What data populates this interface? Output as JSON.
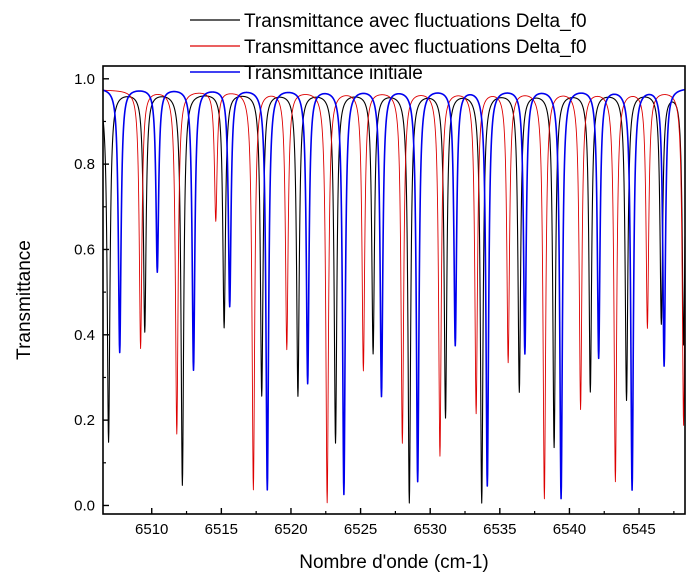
{
  "chart_data": {
    "type": "line",
    "xlabel": "Nombre d'onde (cm-1)",
    "ylabel": "Transmittance",
    "xlim": [
      6506.5,
      6548.3
    ],
    "ylim": [
      -0.02,
      1.03
    ],
    "x_ticks": [
      "6510",
      "6515",
      "6520",
      "6525",
      "6530",
      "6535",
      "6540",
      "6545"
    ],
    "y_ticks": [
      "0.0",
      "0.2",
      "0.4",
      "0.6",
      "0.8",
      "1.0"
    ],
    "legend_position": "top-center",
    "grid": false,
    "series": [
      {
        "name": "Transmittance avec fluctuations Delta_f0",
        "color": "#000000",
        "baseline": 0.97,
        "dips": [
          [
            6506.9,
            0.15
          ],
          [
            6509.5,
            0.41
          ],
          [
            6512.2,
            0.05
          ],
          [
            6515.2,
            0.42
          ],
          [
            6517.9,
            0.26
          ],
          [
            6520.5,
            0.26
          ],
          [
            6523.2,
            0.15
          ],
          [
            6525.9,
            0.36
          ],
          [
            6528.5,
            0.01
          ],
          [
            6531.1,
            0.21
          ],
          [
            6533.7,
            0.01
          ],
          [
            6536.4,
            0.27
          ],
          [
            6538.9,
            0.14
          ],
          [
            6541.5,
            0.27
          ],
          [
            6544.1,
            0.25
          ],
          [
            6546.6,
            0.43
          ],
          [
            6548.2,
            0.38
          ]
        ]
      },
      {
        "name": "Transmittance avec fluctuations Delta_f0",
        "color": "#dd0000",
        "baseline": 0.975,
        "dips": [
          [
            6509.2,
            0.37
          ],
          [
            6511.8,
            0.17
          ],
          [
            6514.6,
            0.67
          ],
          [
            6517.3,
            0.04
          ],
          [
            6519.7,
            0.37
          ],
          [
            6522.6,
            0.01
          ],
          [
            6525.2,
            0.32
          ],
          [
            6528.0,
            0.15
          ],
          [
            6530.7,
            0.12
          ],
          [
            6533.3,
            0.22
          ],
          [
            6535.6,
            0.34
          ],
          [
            6538.2,
            0.02
          ],
          [
            6540.8,
            0.23
          ],
          [
            6543.3,
            0.06
          ],
          [
            6545.6,
            0.42
          ],
          [
            6548.2,
            0.19
          ]
        ]
      },
      {
        "name": "Transmittance initiale",
        "color": "#0000ee",
        "baseline": 0.98,
        "dips": [
          [
            6507.7,
            0.36
          ],
          [
            6510.4,
            0.55
          ],
          [
            6513.0,
            0.32
          ],
          [
            6515.6,
            0.47
          ],
          [
            6518.3,
            0.04
          ],
          [
            6521.2,
            0.29
          ],
          [
            6523.8,
            0.03
          ],
          [
            6526.5,
            0.26
          ],
          [
            6529.1,
            0.06
          ],
          [
            6531.8,
            0.38
          ],
          [
            6534.1,
            0.05
          ],
          [
            6536.8,
            0.36
          ],
          [
            6539.4,
            0.02
          ],
          [
            6542.1,
            0.35
          ],
          [
            6544.5,
            0.04
          ],
          [
            6546.8,
            0.33
          ]
        ]
      }
    ]
  }
}
